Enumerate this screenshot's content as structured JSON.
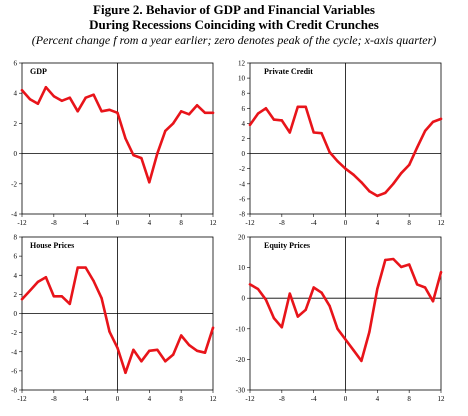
{
  "figure": {
    "title_line1": "Figure 2. Behavior of GDP and Financial Variables",
    "title_line2": "During Recessions Coinciding with Credit Crunches",
    "subtitle": "(Percent change f rom a year earlier; zero denotes peak of  the cycle; x-axis quarter)"
  },
  "chart_data": [
    {
      "type": "line",
      "title": "GDP",
      "x": [
        -12,
        -11,
        -10,
        -9,
        -8,
        -7,
        -6,
        -5,
        -4,
        -3,
        -2,
        -1,
        0,
        1,
        2,
        3,
        4,
        5,
        6,
        7,
        8,
        9,
        10,
        11,
        12
      ],
      "series": [
        {
          "values": [
            4.2,
            3.6,
            3.3,
            4.4,
            3.8,
            3.5,
            3.7,
            2.8,
            3.7,
            3.9,
            2.8,
            2.9,
            2.7,
            1.0,
            -0.1,
            -0.3,
            -1.9,
            0.0,
            1.5,
            2.0,
            2.8,
            2.6,
            3.2,
            2.7,
            2.7
          ]
        }
      ],
      "xlim": [
        -12,
        12
      ],
      "ylim": [
        -4,
        6
      ],
      "xticks": [
        -12,
        -8,
        -4,
        0,
        4,
        8,
        12
      ],
      "yticks": [
        -4,
        -2,
        0,
        2,
        4,
        6
      ],
      "line_color": "#e8141a",
      "grid": false,
      "legend": "none"
    },
    {
      "type": "line",
      "title": "Private Credit",
      "x": [
        -12,
        -11,
        -10,
        -9,
        -8,
        -7,
        -6,
        -5,
        -4,
        -3,
        -2,
        -1,
        0,
        1,
        2,
        3,
        4,
        5,
        6,
        7,
        8,
        9,
        10,
        11,
        12
      ],
      "series": [
        {
          "values": [
            3.8,
            5.3,
            6.0,
            4.5,
            4.4,
            2.8,
            6.2,
            6.2,
            2.8,
            2.7,
            0.2,
            -1.0,
            -2.0,
            -2.8,
            -3.8,
            -5.0,
            -5.6,
            -5.2,
            -4.0,
            -2.6,
            -1.5,
            0.8,
            3.0,
            4.2,
            4.6
          ]
        }
      ],
      "xlim": [
        -12,
        12
      ],
      "ylim": [
        -8,
        12
      ],
      "xticks": [
        -12,
        -8,
        -4,
        0,
        4,
        8,
        12
      ],
      "yticks": [
        -8,
        -6,
        -4,
        -2,
        0,
        2,
        4,
        6,
        8,
        10,
        12
      ],
      "line_color": "#e8141a",
      "grid": false,
      "legend": "none"
    },
    {
      "type": "line",
      "title": "House Prices",
      "x": [
        -12,
        -11,
        -10,
        -9,
        -8,
        -7,
        -6,
        -5,
        -4,
        -3,
        -2,
        -1,
        0,
        1,
        2,
        3,
        4,
        5,
        6,
        7,
        8,
        9,
        10,
        11,
        12
      ],
      "series": [
        {
          "values": [
            1.5,
            2.4,
            3.3,
            3.8,
            1.8,
            1.8,
            1.0,
            4.8,
            4.8,
            3.4,
            1.6,
            -1.9,
            -3.6,
            -6.2,
            -3.8,
            -5.0,
            -3.9,
            -3.8,
            -5.0,
            -4.3,
            -2.3,
            -3.3,
            -3.9,
            -4.1,
            -1.5
          ]
        }
      ],
      "xlim": [
        -12,
        12
      ],
      "ylim": [
        -8,
        8
      ],
      "xticks": [
        -12,
        -8,
        -4,
        0,
        4,
        8,
        12
      ],
      "yticks": [
        -8,
        -6,
        -4,
        -2,
        0,
        2,
        4,
        6,
        8
      ],
      "line_color": "#e8141a",
      "grid": false,
      "legend": "none"
    },
    {
      "type": "line",
      "title": "Equity Prices",
      "x": [
        -12,
        -11,
        -10,
        -9,
        -8,
        -7,
        -6,
        -5,
        -4,
        -3,
        -2,
        -1,
        0,
        1,
        2,
        3,
        4,
        5,
        6,
        7,
        8,
        9,
        10,
        11,
        12
      ],
      "series": [
        {
          "values": [
            4.5,
            3.0,
            -0.5,
            -6.5,
            -9.5,
            1.5,
            -6.0,
            -3.8,
            3.5,
            1.8,
            -2.5,
            -10.0,
            -13.5,
            -17.0,
            -20.5,
            -11.0,
            3.0,
            12.5,
            12.8,
            10.2,
            11.0,
            4.5,
            3.5,
            -1.0,
            8.5
          ]
        }
      ],
      "xlim": [
        -12,
        12
      ],
      "ylim": [
        -30,
        20
      ],
      "xticks": [
        -12,
        -8,
        -4,
        0,
        4,
        8,
        12
      ],
      "yticks": [
        -30,
        -20,
        -10,
        0,
        10,
        20
      ],
      "line_color": "#e8141a",
      "grid": false,
      "legend": "none"
    }
  ]
}
